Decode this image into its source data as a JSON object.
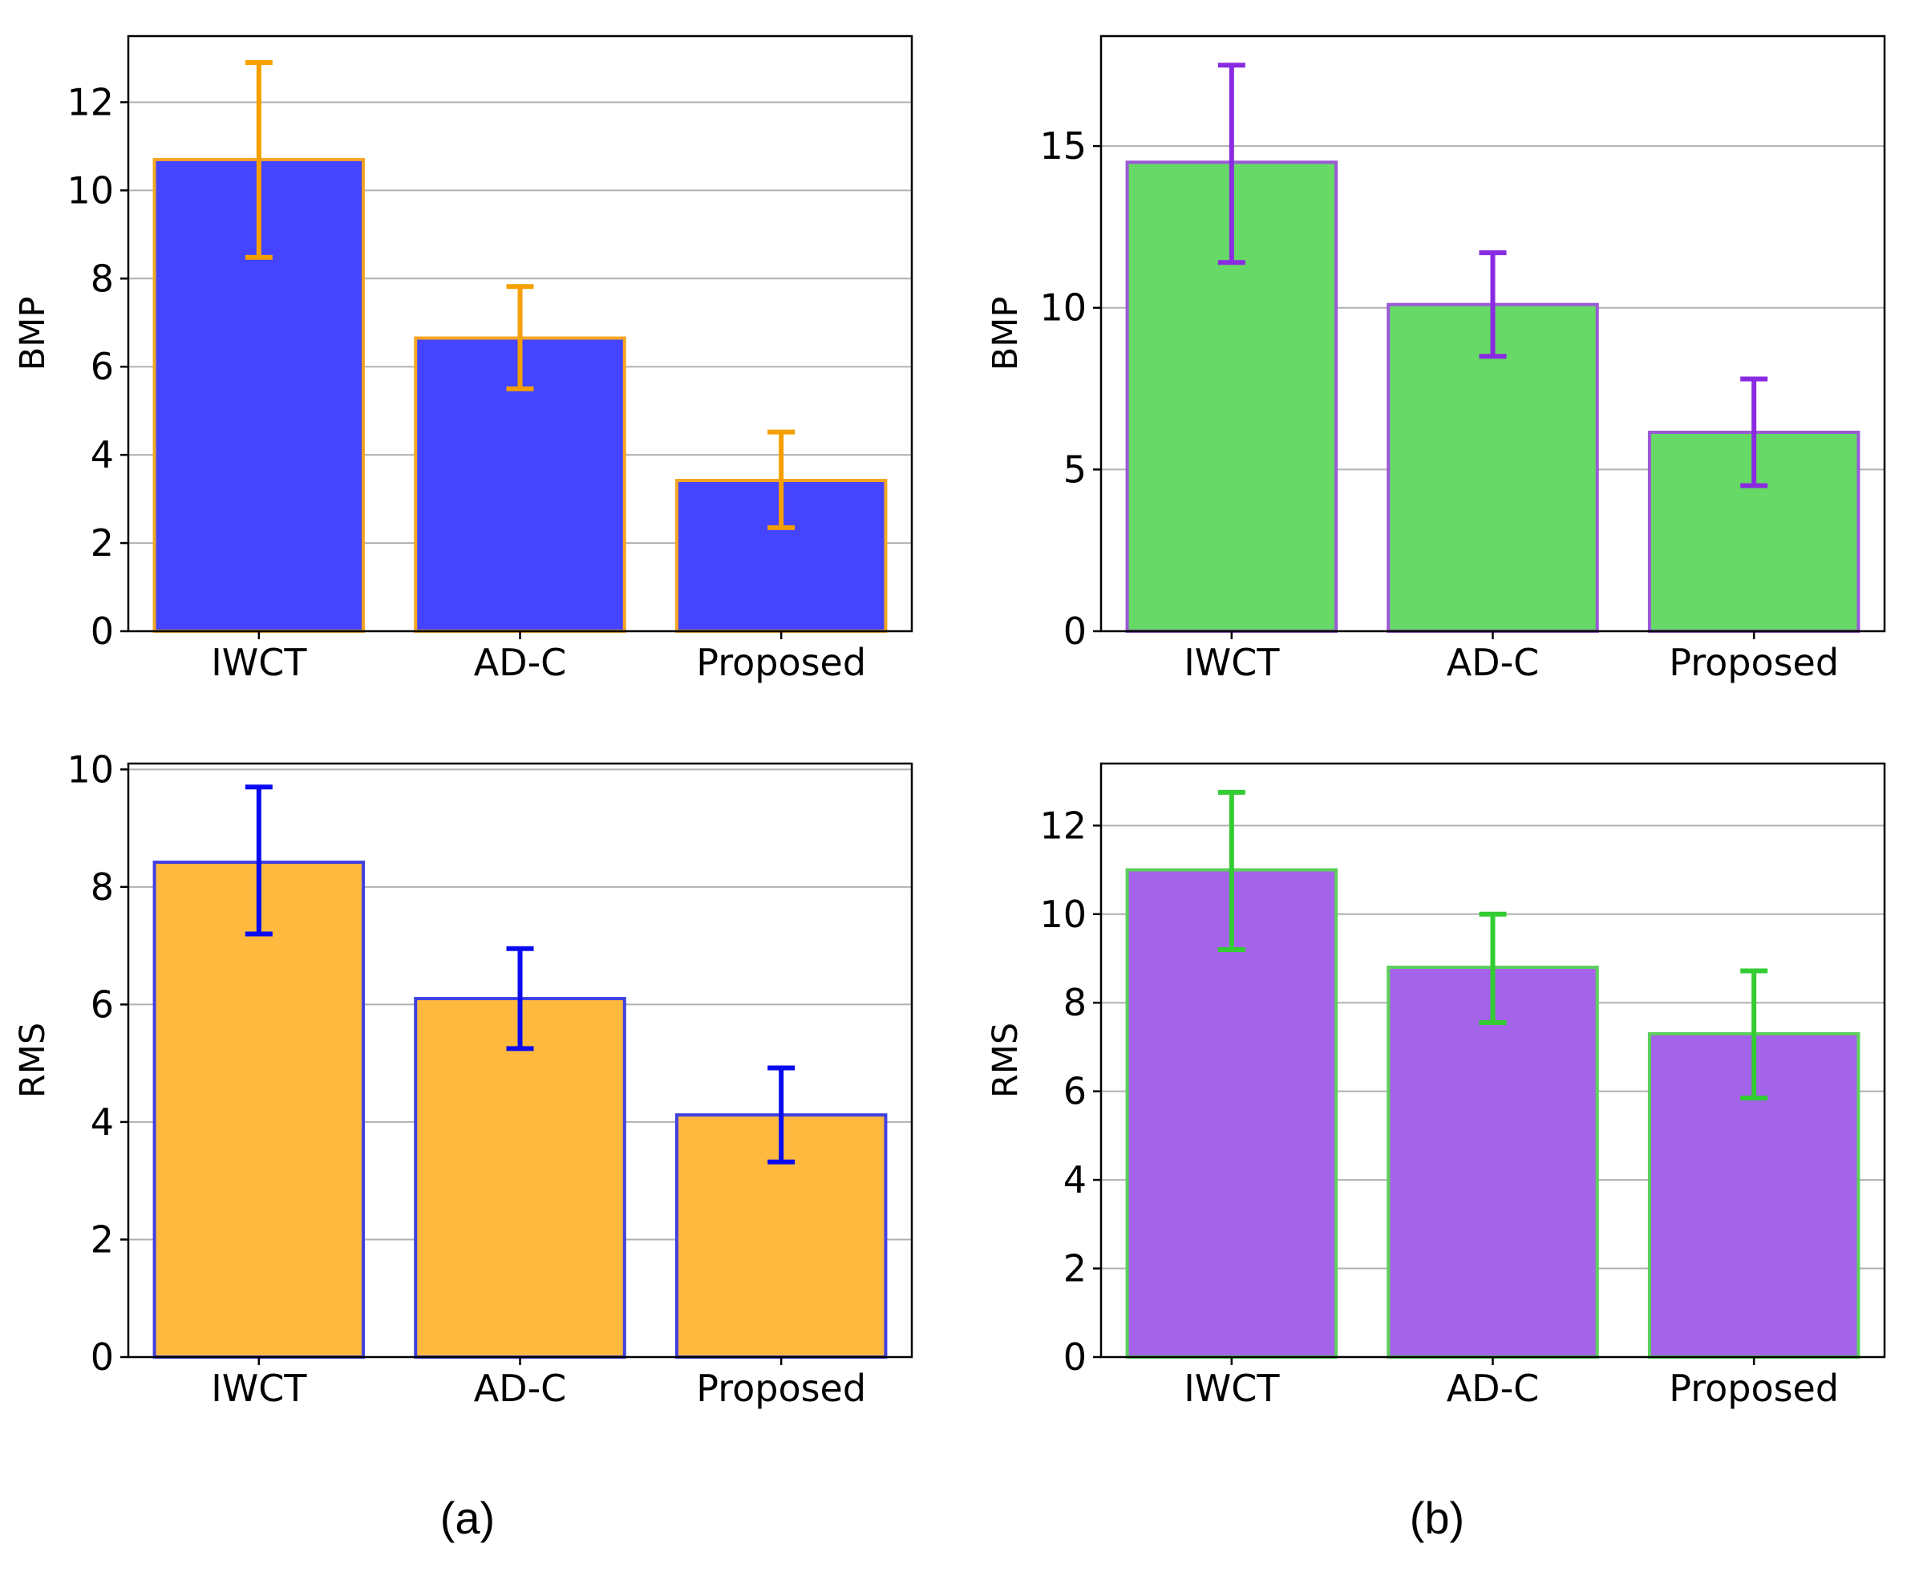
{
  "panel_labels": {
    "a": "(a)",
    "b": "(b)"
  },
  "chart_data": [
    {
      "id": "a-top",
      "type": "bar",
      "panel": "(a)",
      "categories": [
        "IWCT",
        "AD-C",
        "Proposed"
      ],
      "values": [
        10.7,
        6.65,
        3.42
      ],
      "error_low": [
        8.48,
        5.5,
        2.35
      ],
      "error_high": [
        12.9,
        7.82,
        4.52
      ],
      "ylabel": "BMP",
      "xlabel": "",
      "title": "",
      "ylim": [
        0,
        13.5
      ],
      "yticks": [
        0,
        2,
        4,
        6,
        8,
        10,
        12
      ],
      "grid": "y",
      "bar_color": "#4545ff",
      "bar_edge_color": "#f5a623",
      "error_color": "#f5a000"
    },
    {
      "id": "b-top",
      "type": "bar",
      "panel": "(b)",
      "categories": [
        "IWCT",
        "AD-C",
        "Proposed"
      ],
      "values": [
        14.5,
        10.1,
        6.15
      ],
      "error_low": [
        11.4,
        8.5,
        4.5
      ],
      "error_high": [
        17.5,
        11.7,
        7.8
      ],
      "ylabel": "BMP",
      "xlabel": "",
      "title": "",
      "ylim": [
        0,
        18.4
      ],
      "yticks": [
        0,
        5,
        10,
        15
      ],
      "grid": "y",
      "bar_color": "#66d966",
      "bar_edge_color": "#9b59d6",
      "error_color": "#8a2be2"
    },
    {
      "id": "a-bottom",
      "type": "bar",
      "panel": "(a)",
      "categories": [
        "IWCT",
        "AD-C",
        "Proposed"
      ],
      "values": [
        8.42,
        6.1,
        4.12
      ],
      "error_low": [
        7.2,
        5.25,
        3.32
      ],
      "error_high": [
        9.7,
        6.95,
        4.92
      ],
      "ylabel": "RMS",
      "xlabel": "",
      "title": "",
      "ylim": [
        0,
        10.1
      ],
      "yticks": [
        0,
        2,
        4,
        6,
        8,
        10
      ],
      "grid": "y",
      "bar_color": "#ffb93f",
      "bar_edge_color": "#4040e0",
      "error_color": "#0a0af0"
    },
    {
      "id": "b-bottom",
      "type": "bar",
      "panel": "(b)",
      "categories": [
        "IWCT",
        "AD-C",
        "Proposed"
      ],
      "values": [
        11.0,
        8.8,
        7.3
      ],
      "error_low": [
        9.2,
        7.55,
        5.85
      ],
      "error_high": [
        12.75,
        10.0,
        8.72
      ],
      "ylabel": "RMS",
      "xlabel": "",
      "title": "",
      "ylim": [
        0,
        13.4
      ],
      "yticks": [
        0,
        2,
        4,
        6,
        8,
        10,
        12
      ],
      "grid": "y",
      "bar_color": "#a463e8",
      "bar_edge_color": "#5ccf5c",
      "error_color": "#33cc33"
    }
  ]
}
